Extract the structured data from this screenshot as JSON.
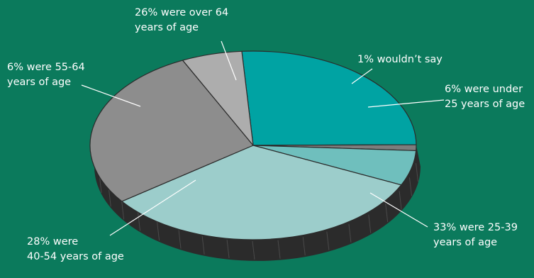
{
  "colors": {
    "background": "#0b7a5c",
    "edge": "#2b2b2b",
    "hatch": "#4a4a4a",
    "leader": "#ffffff"
  },
  "chart_data": {
    "type": "pie",
    "style": "3d-tilted",
    "order": "clockwise from top",
    "slices": [
      {
        "value": 26,
        "label_lines": [
          "26% were over 64",
          "years of age"
        ],
        "color": "#00a3a3"
      },
      {
        "value": 1,
        "label_lines": [
          "1% wouldn’t say"
        ],
        "color": "#7d7d7d"
      },
      {
        "value": 6,
        "label_lines": [
          "6% were under",
          "25 years of age"
        ],
        "color": "#6fbfbd"
      },
      {
        "value": 33,
        "label_lines": [
          "33% were 25-39",
          "years of age"
        ],
        "color": "#9ccdcb"
      },
      {
        "value": 28,
        "label_lines": [
          "28% were",
          "40-54 years of age"
        ],
        "color": "#8d8d8d"
      },
      {
        "value": 6,
        "label_lines": [
          "6% were 55-64",
          "years of age"
        ],
        "color": "#adadad"
      }
    ]
  }
}
